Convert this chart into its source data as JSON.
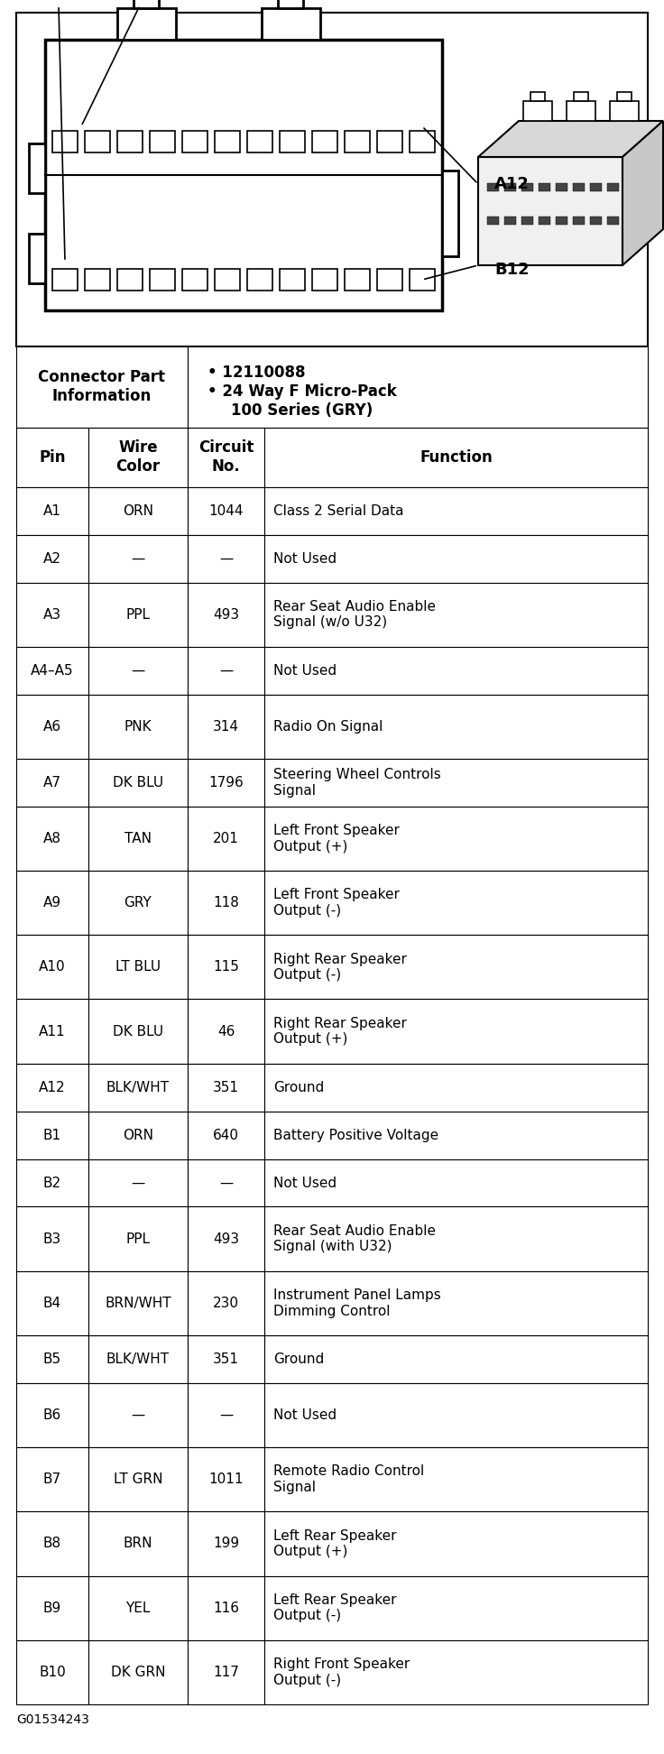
{
  "bullet_points": [
    "12110088",
    "24 Way F Micro-Pack\n100 Series (GRY)"
  ],
  "headers": [
    "Pin",
    "Wire\nColor",
    "Circuit\nNo.",
    "Function"
  ],
  "rows": [
    [
      "A1",
      "ORN",
      "1044",
      "Class 2 Serial Data"
    ],
    [
      "A2",
      "—",
      "—",
      "Not Used"
    ],
    [
      "A3",
      "PPL",
      "493",
      "Rear Seat Audio Enable\nSignal (w/o U32)"
    ],
    [
      "A4–A5",
      "—",
      "—",
      "Not Used"
    ],
    [
      "A6",
      "PNK",
      "314",
      "Radio On Signal"
    ],
    [
      "A7",
      "DK BLU",
      "1796",
      "Steering Wheel Controls\nSignal"
    ],
    [
      "A8",
      "TAN",
      "201",
      "Left Front Speaker\nOutput (+)"
    ],
    [
      "A9",
      "GRY",
      "118",
      "Left Front Speaker\nOutput (-)"
    ],
    [
      "A10",
      "LT BLU",
      "115",
      "Right Rear Speaker\nOutput (-)"
    ],
    [
      "A11",
      "DK BLU",
      "46",
      "Right Rear Speaker\nOutput (+)"
    ],
    [
      "A12",
      "BLK/WHT",
      "351",
      "Ground"
    ],
    [
      "B1",
      "ORN",
      "640",
      "Battery Positive Voltage"
    ],
    [
      "B2",
      "—",
      "—",
      "Not Used"
    ],
    [
      "B3",
      "PPL",
      "493",
      "Rear Seat Audio Enable\nSignal (with U32)"
    ],
    [
      "B4",
      "BRN/WHT",
      "230",
      "Instrument Panel Lamps\nDimming Control"
    ],
    [
      "B5",
      "BLK/WHT",
      "351",
      "Ground"
    ],
    [
      "B6",
      "—",
      "—",
      "Not Used"
    ],
    [
      "B7",
      "LT GRN",
      "1011",
      "Remote Radio Control\nSignal"
    ],
    [
      "B8",
      "BRN",
      "199",
      "Left Rear Speaker\nOutput (+)"
    ],
    [
      "B9",
      "YEL",
      "116",
      "Left Rear Speaker\nOutput (-)"
    ],
    [
      "B10",
      "DK GRN",
      "117",
      "Right Front Speaker\nOutput (-)"
    ]
  ],
  "footer": "G01534243",
  "bg_color": "#ffffff"
}
